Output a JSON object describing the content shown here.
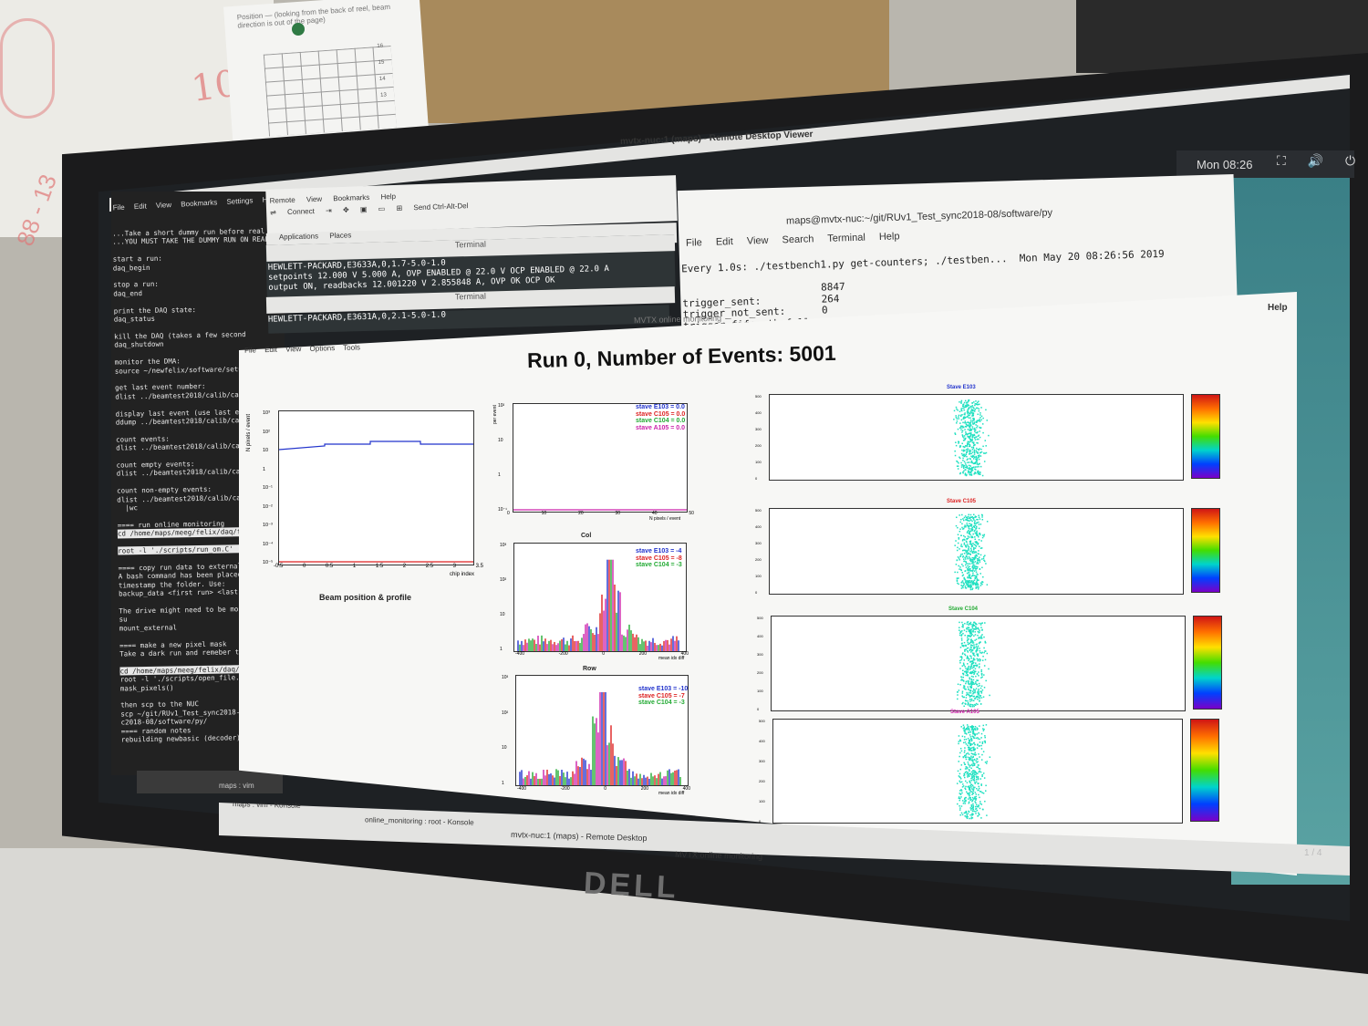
{
  "room": {
    "whiteboard_text": "101",
    "whiteboard_text2": "88 - 13",
    "note_title": "Position — (looking from the back of reel, beam direction is out of the page)",
    "note_numbers": [
      "16",
      "15",
      "14",
      "13"
    ]
  },
  "monitor": {
    "brand": "DELL"
  },
  "topbar": {
    "clock": "Mon 08:26",
    "tray": "⛶ 🔊 ⏻"
  },
  "rdv": {
    "title": "mvtx-nuc:1 (maps) - Remote Desktop Viewer"
  },
  "remote_menu": {
    "items": [
      "Remote",
      "View",
      "Bookmarks",
      "Help"
    ],
    "connect": "Connect",
    "send": "Send Ctrl-Alt-Del"
  },
  "konsole": {
    "menu": [
      "File",
      "Edit",
      "View",
      "Bookmarks",
      "Settings",
      "Hel"
    ],
    "lines": [
      "...Take a short dummy run before real da",
      "...YOU MUST TAKE THE DUMMY RUN ON REAL D",
      "",
      "start a run:",
      "daq_begin",
      "",
      "stop a run:",
      "daq_end",
      "",
      "print the DAQ state:",
      "daq_status",
      "",
      "kill the DAQ (takes a few second",
      "daq_shutdown",
      "",
      "monitor the DMA:",
      "source ~/newfelix/software/setup",
      "",
      "get last event number:",
      "dlist ../beamtest2018/calib/cali",
      "",
      "display last event (use last eve",
      "ddump ../beamtest2018/calib/cali",
      "",
      "count events:",
      "dlist ../beamtest2018/calib/cali",
      "",
      "count empty events:",
      "dlist ../beamtest2018/calib/cali",
      "",
      "count non-empty events:",
      "dlist ../beamtest2018/calib/cali",
      "  |wc",
      "",
      "==== run online monitoring",
      "cd /home/maps/meeg/felix/daq/fel",
      "",
      "root -l './scripts/run_om.C'",
      "",
      "==== copy run data to external ha",
      "A bash command has been placed i",
      "timestamp the folder. Use:",
      "backup_data <first run> <last ru",
      "",
      "The drive might need to be mounte",
      "su",
      "mount_external",
      "",
      "==== make a new pixel mask",
      "Take a dark run and remeber the",
      "",
      "cd /home/maps/meeg/felix/daq/fel",
      "root -l './scripts/open_file.C(<",
      "mask_pixels()",
      "",
      "then scp to the NUC",
      "scp ~/git/RUv1_Test_sync2018-08/",
      "c2018-08/software/py/",
      "==== random notes",
      "rebuilding newbasic (decoder):"
    ],
    "status": "maps : vim"
  },
  "apps_bar": {
    "applications": "Applications",
    "places": "Places"
  },
  "term1": {
    "title": "Terminal",
    "lines": [
      "HEWLETT-PACKARD,E3633A,0,1.7-5.0-1.0",
      "setpoints 12.000 V 5.000 A, OVP ENABLED @ 22.0 V OCP ENABLED @ 22.0 A",
      "output ON, readbacks 12.001220 V 2.855848 A, OVP OK OCP OK"
    ]
  },
  "term2": {
    "title": "Terminal",
    "lines": [
      "HEWLETT-PACKARD,E3631A,0,2.1-5.0-1.0"
    ]
  },
  "bigterm": {
    "title": "maps@mvtx-nuc:~/git/RUv1_Test_sync2018-08/software/py",
    "menu": [
      "File",
      "Edit",
      "View",
      "Search",
      "Terminal",
      "Help"
    ],
    "lines": [
      "Every 1.0s: ./testbench1.py get-counters; ./testben...  Mon May 20 08:26:56 2019",
      "",
      "                       8847",
      "trigger_sent:          264",
      "trigger_not_sent:      0",
      "trigger_fifo_gth_full:"
    ]
  },
  "mvtx": {
    "title": "MVTX online monitoring",
    "help": "Help",
    "menu": [
      "File",
      "Edit",
      "View",
      "Options",
      "Tools"
    ],
    "run_title": "Run 0, Number of Events: 5001",
    "beam_label": "Beam position & profile",
    "chip_plot": {
      "ylabel": "N pixels / event",
      "xlabel": "chip index",
      "xticks": [
        "-0.5",
        "0",
        "0.5",
        "1",
        "1.5",
        "2",
        "2.5",
        "3",
        "3.5"
      ],
      "yticks": [
        "10³",
        "10²",
        "10",
        "1",
        "10⁻¹",
        "10⁻²",
        "10⁻³",
        "10⁻⁴",
        "10⁻⁵"
      ]
    },
    "npix_plot": {
      "ylabel": "per event",
      "xlabel": "N pixels / event",
      "xticks": [
        "0",
        "10",
        "20",
        "30",
        "40",
        "50"
      ],
      "yticks": [
        "10²",
        "10",
        "1",
        "10⁻¹"
      ],
      "legend": [
        {
          "text": "stave E103 = 0.0",
          "color": "#2233cc"
        },
        {
          "text": "stave C105 = 0.0",
          "color": "#dd2222"
        },
        {
          "text": "stave C104 = 0.0",
          "color": "#22aa33"
        },
        {
          "text": "stave A105 = 0.0",
          "color": "#cc22aa"
        }
      ]
    },
    "col_plot": {
      "title": "Col",
      "xlabel": "mean idx diff",
      "xticks": [
        "-400",
        "-200",
        "0",
        "200",
        "400"
      ],
      "yticks": [
        "10³",
        "10²",
        "10",
        "1"
      ],
      "legend": [
        {
          "text": "stave E103 = -4",
          "color": "#2233cc"
        },
        {
          "text": "stave C105 = -8",
          "color": "#dd2222"
        },
        {
          "text": "stave C104 = -3",
          "color": "#22aa33"
        }
      ]
    },
    "row_plot": {
      "title": "Row",
      "xlabel": "mean idx diff",
      "xticks": [
        "-400",
        "-200",
        "0",
        "200",
        "400"
      ],
      "yticks": [
        "10³",
        "10²",
        "10",
        "1"
      ],
      "legend": [
        {
          "text": "stave E103 = -10",
          "color": "#2233cc"
        },
        {
          "text": "stave C105 = -7",
          "color": "#dd2222"
        },
        {
          "text": "stave C104 = -3",
          "color": "#22aa33"
        }
      ]
    },
    "heatmaps": [
      {
        "title": "Stave E103",
        "color": "#2233cc"
      },
      {
        "title": "Stave C105",
        "color": "#dd2222"
      },
      {
        "title": "Stave C104",
        "color": "#22aa33"
      },
      {
        "title": "Stave A105",
        "color": "#cc22aa"
      }
    ],
    "heat_yticks": [
      "500",
      "400",
      "300",
      "200",
      "100",
      "0"
    ],
    "hit_color": "#1ee0c0"
  },
  "taskbar": {
    "items": [
      "maps : vim - Konsole",
      "online_monitoring : root - Konsole",
      "mvtx-nuc:1 (maps) - Remote Desktop",
      "MVTX online monitoring"
    ],
    "pager": "1 / 4"
  }
}
